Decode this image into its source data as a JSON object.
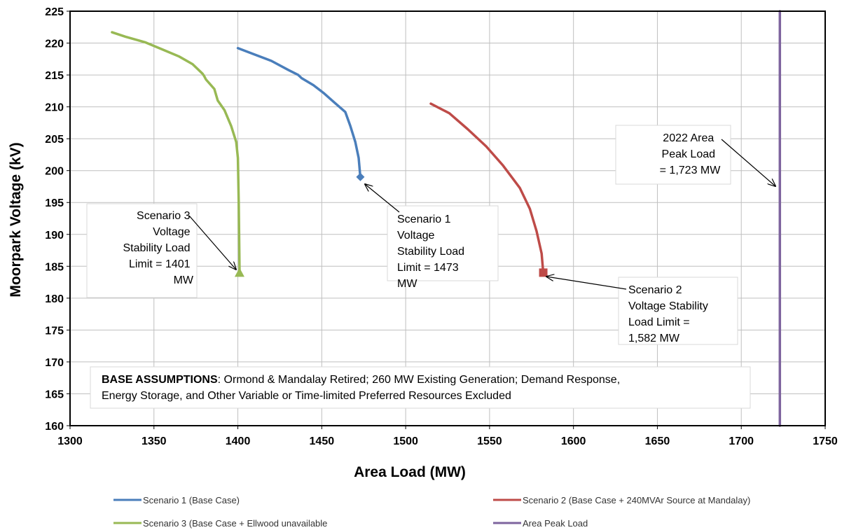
{
  "chart_data": {
    "type": "line",
    "xlabel": "Area Load (MW)",
    "ylabel": "Moorpark Voltage (kV)",
    "xlim": [
      1300,
      1750
    ],
    "ylim": [
      160,
      225
    ],
    "x_ticks": [
      1300,
      1350,
      1400,
      1450,
      1500,
      1550,
      1600,
      1650,
      1700,
      1750
    ],
    "y_ticks": [
      160,
      165,
      170,
      175,
      180,
      185,
      190,
      195,
      200,
      205,
      210,
      215,
      220,
      225
    ],
    "grid": true,
    "legend_position": "bottom",
    "series": [
      {
        "name": "Scenario 1 (Base Case)",
        "color": "#4a7ebb",
        "marker": "diamond",
        "points": [
          [
            1400,
            219.2
          ],
          [
            1410,
            218.2
          ],
          [
            1420,
            217.2
          ],
          [
            1430,
            215.8
          ],
          [
            1436,
            215.0
          ],
          [
            1438,
            214.5
          ],
          [
            1445,
            213.4
          ],
          [
            1451,
            212.2
          ],
          [
            1457,
            210.8
          ],
          [
            1464,
            209.2
          ],
          [
            1467,
            207.0
          ],
          [
            1470,
            204.5
          ],
          [
            1472,
            202.0
          ],
          [
            1473,
            199.0
          ]
        ]
      },
      {
        "name": "Scenario 2 (Base Case + 240MVAr Source at Mandalay)",
        "color": "#be4b48",
        "marker": "square",
        "points": [
          [
            1515,
            210.5
          ],
          [
            1526,
            209.0
          ],
          [
            1537,
            206.5
          ],
          [
            1548,
            203.8
          ],
          [
            1558,
            200.8
          ],
          [
            1568,
            197.3
          ],
          [
            1574,
            194.0
          ],
          [
            1578,
            190.5
          ],
          [
            1581,
            187.0
          ],
          [
            1582,
            184.0
          ]
        ]
      },
      {
        "name": "Scenario 3 (Base Case + Ellwood unavailable",
        "color": "#98b954",
        "marker": "triangle",
        "points": [
          [
            1325,
            221.7
          ],
          [
            1333,
            221.0
          ],
          [
            1345,
            220.1
          ],
          [
            1355,
            219.0
          ],
          [
            1365,
            217.9
          ],
          [
            1373,
            216.7
          ],
          [
            1379,
            215.2
          ],
          [
            1380,
            214.8
          ],
          [
            1381,
            214.3
          ],
          [
            1386,
            212.8
          ],
          [
            1388,
            211.0
          ],
          [
            1392,
            209.5
          ],
          [
            1396,
            207.0
          ],
          [
            1399,
            204.5
          ],
          [
            1400,
            202.0
          ],
          [
            1400.5,
            195.0
          ],
          [
            1401,
            184.0
          ]
        ]
      },
      {
        "name": "Area Peak Load",
        "color": "#7e649e",
        "marker": "none",
        "points": [
          [
            1723,
            160
          ],
          [
            1723,
            225
          ]
        ]
      }
    ],
    "annotations": [
      {
        "lines": [
          "Scenario 3",
          "Voltage",
          "Stability Load",
          "Limit = 1401",
          "MW"
        ],
        "align": "right"
      },
      {
        "lines": [
          "Scenario 1",
          "Voltage",
          "Stability Load",
          "Limit = 1473",
          "MW"
        ],
        "align": "left"
      },
      {
        "lines": [
          "Scenario 2",
          "Voltage Stability",
          "Load Limit =",
          "1,582 MW"
        ],
        "align": "left"
      },
      {
        "lines": [
          "2022 Area",
          "Peak Load",
          "= 1,723 MW"
        ],
        "align": "center"
      }
    ],
    "assumptions": {
      "bold": "BASE ASSUMPTIONS",
      "line1": ":  Ormond & Mandalay Retired; 260 MW Existing Generation; Demand Response,",
      "line2": "Energy Storage, and Other Variable or Time-limited  Preferred Resources Excluded"
    }
  }
}
